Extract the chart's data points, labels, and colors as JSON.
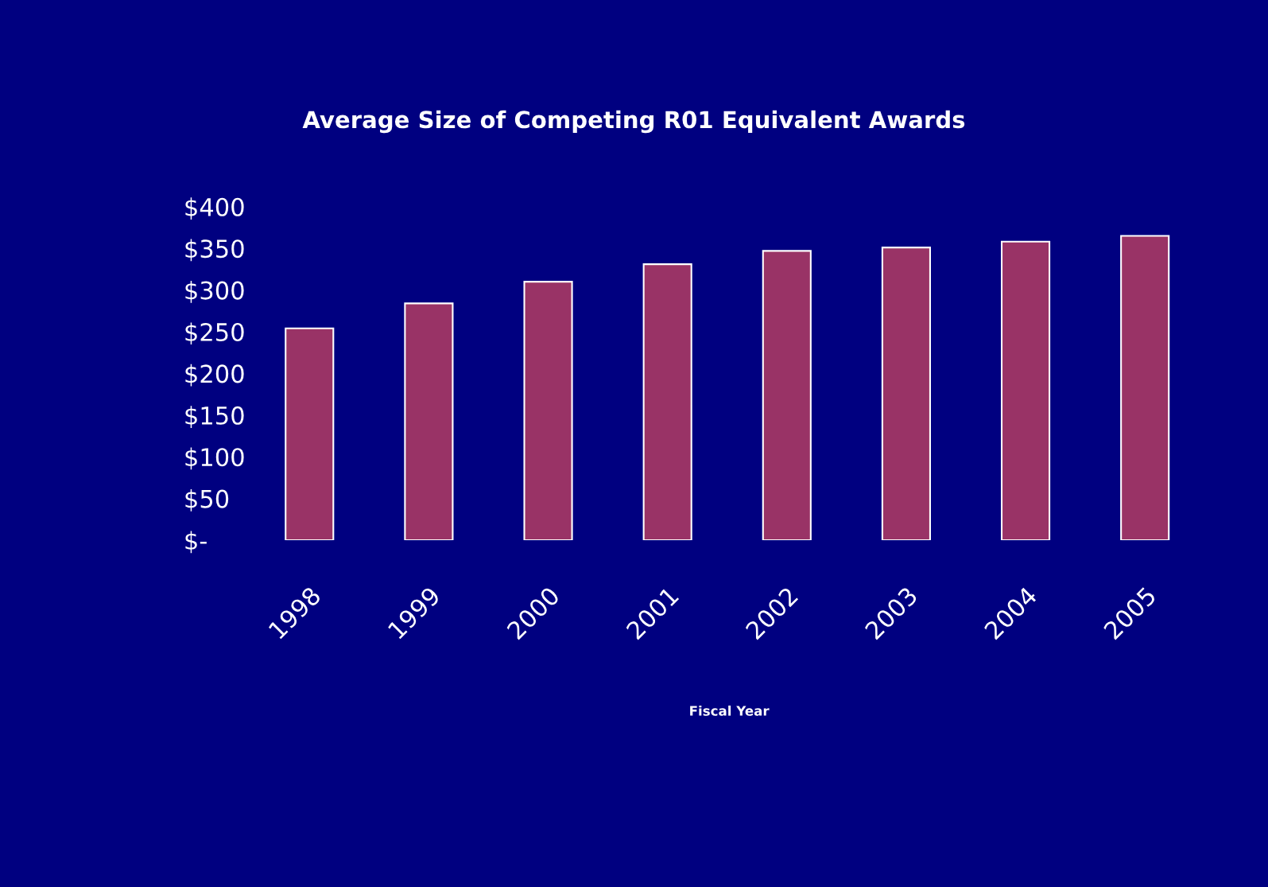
{
  "chart_data": {
    "type": "bar",
    "title": "Average Size of Competing R01 Equivalent Awards",
    "xlabel": "Fiscal Year",
    "categories": [
      "1998",
      "1999",
      "2000",
      "2001",
      "2002",
      "2003",
      "2004",
      "2005"
    ],
    "values": [
      254,
      284,
      310,
      331,
      347,
      351,
      358,
      365
    ],
    "color": "#993366",
    "ylim": [
      0,
      400
    ],
    "yticks": [
      {
        "value": 0,
        "label": "$-"
      },
      {
        "value": 50,
        "label": "$50"
      },
      {
        "value": 100,
        "label": "$100"
      },
      {
        "value": 150,
        "label": "$150"
      },
      {
        "value": 200,
        "label": "$200"
      },
      {
        "value": 250,
        "label": "$250"
      },
      {
        "value": 300,
        "label": "$300"
      },
      {
        "value": 350,
        "label": "$350"
      },
      {
        "value": 400,
        "label": "$400"
      }
    ],
    "grid": false,
    "legend": false
  }
}
